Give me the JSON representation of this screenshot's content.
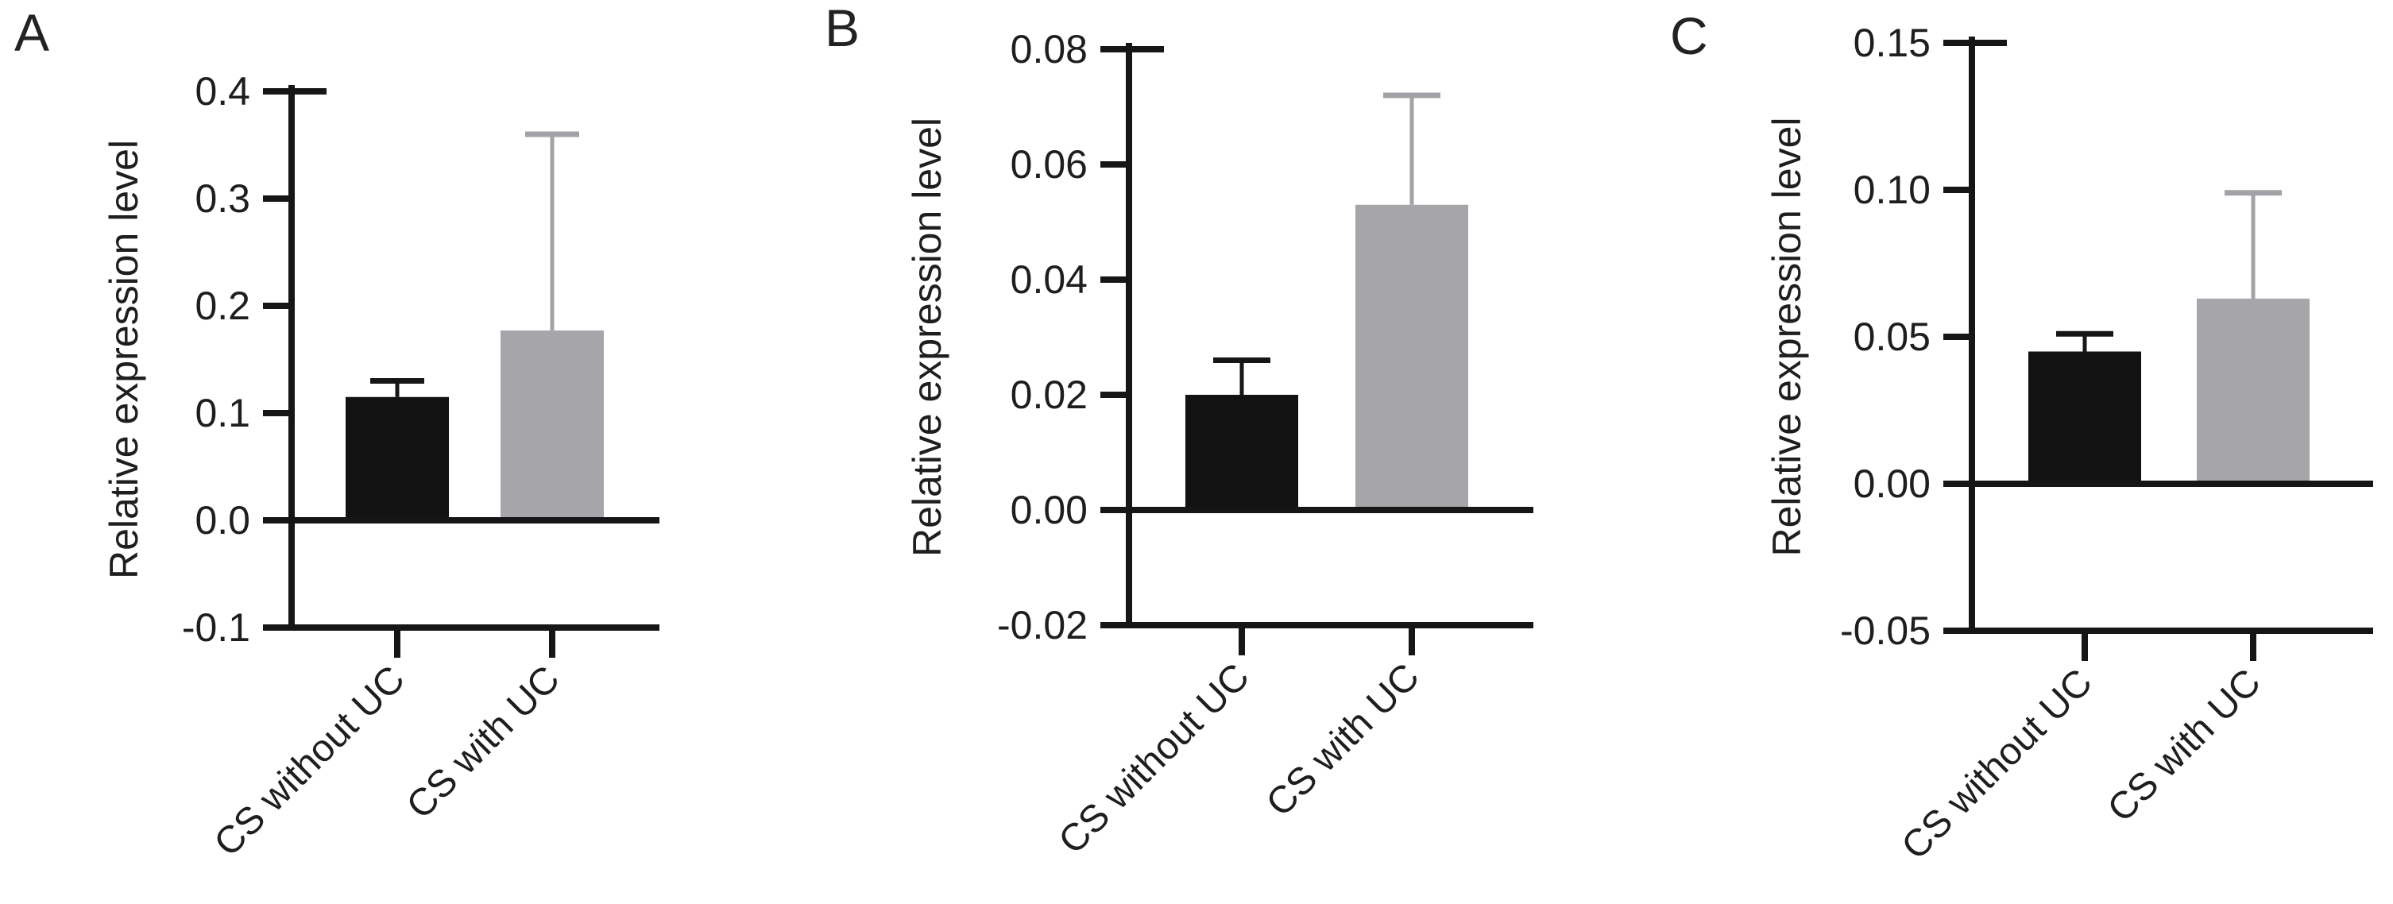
{
  "figure": {
    "background": "#ffffff",
    "axis_color": "#161616",
    "text_color": "#1e1e1e",
    "black_bar_color": "#121212",
    "gray_bar_color": "#a6a5a9"
  },
  "chart_data": [
    {
      "type": "bar",
      "panel_label": "A",
      "title": "",
      "xlabel": "",
      "ylabel": "Relative expression level",
      "ylim": [
        -0.1,
        0.4
      ],
      "grid": false,
      "legend": false,
      "yticks": [
        {
          "value": 0.4,
          "label": "0.4"
        },
        {
          "value": 0.3,
          "label": "0.3"
        },
        {
          "value": 0.2,
          "label": "0.2"
        },
        {
          "value": 0.1,
          "label": "0.1"
        },
        {
          "value": 0.0,
          "label": "0.0"
        },
        {
          "value": -0.1,
          "label": "-0.1"
        }
      ],
      "categories": [
        "CS without UC",
        "CS with UC"
      ],
      "bars": [
        {
          "category": "CS without UC",
          "value": 0.115,
          "error_top": 0.13,
          "fill": "#121212",
          "error_color": "#161616"
        },
        {
          "category": "CS with UC",
          "value": 0.177,
          "error_top": 0.36,
          "fill": "#a6a5a9",
          "error_color": "#a3a2a6"
        }
      ]
    },
    {
      "type": "bar",
      "panel_label": "B",
      "title": "",
      "xlabel": "",
      "ylabel": "Relative expression level",
      "ylim": [
        -0.02,
        0.08
      ],
      "grid": false,
      "legend": false,
      "yticks": [
        {
          "value": 0.08,
          "label": "0.08"
        },
        {
          "value": 0.06,
          "label": "0.06"
        },
        {
          "value": 0.04,
          "label": "0.04"
        },
        {
          "value": 0.02,
          "label": "0.02"
        },
        {
          "value": 0.0,
          "label": "0.00"
        },
        {
          "value": -0.02,
          "label": "-0.02"
        }
      ],
      "categories": [
        "CS without UC",
        "CS with UC"
      ],
      "bars": [
        {
          "category": "CS without UC",
          "value": 0.02,
          "error_top": 0.026,
          "fill": "#121212",
          "error_color": "#161616"
        },
        {
          "category": "CS with UC",
          "value": 0.053,
          "error_top": 0.072,
          "fill": "#a6a5a9",
          "error_color": "#a3a2a6"
        }
      ]
    },
    {
      "type": "bar",
      "panel_label": "C",
      "title": "",
      "xlabel": "",
      "ylabel": "Relative expression level",
      "ylim": [
        -0.05,
        0.15
      ],
      "grid": false,
      "legend": false,
      "yticks": [
        {
          "value": 0.15,
          "label": "0.15"
        },
        {
          "value": 0.1,
          "label": "0.10"
        },
        {
          "value": 0.05,
          "label": "0.05"
        },
        {
          "value": 0.0,
          "label": "0.00"
        },
        {
          "value": -0.05,
          "label": "-0.05"
        }
      ],
      "categories": [
        "CS without UC",
        "CS with UC"
      ],
      "bars": [
        {
          "category": "CS without UC",
          "value": 0.045,
          "error_top": 0.051,
          "fill": "#121212",
          "error_color": "#161616"
        },
        {
          "category": "CS with UC",
          "value": 0.063,
          "error_top": 0.099,
          "fill": "#a6a5a9",
          "error_color": "#a3a2a6"
        }
      ]
    }
  ]
}
